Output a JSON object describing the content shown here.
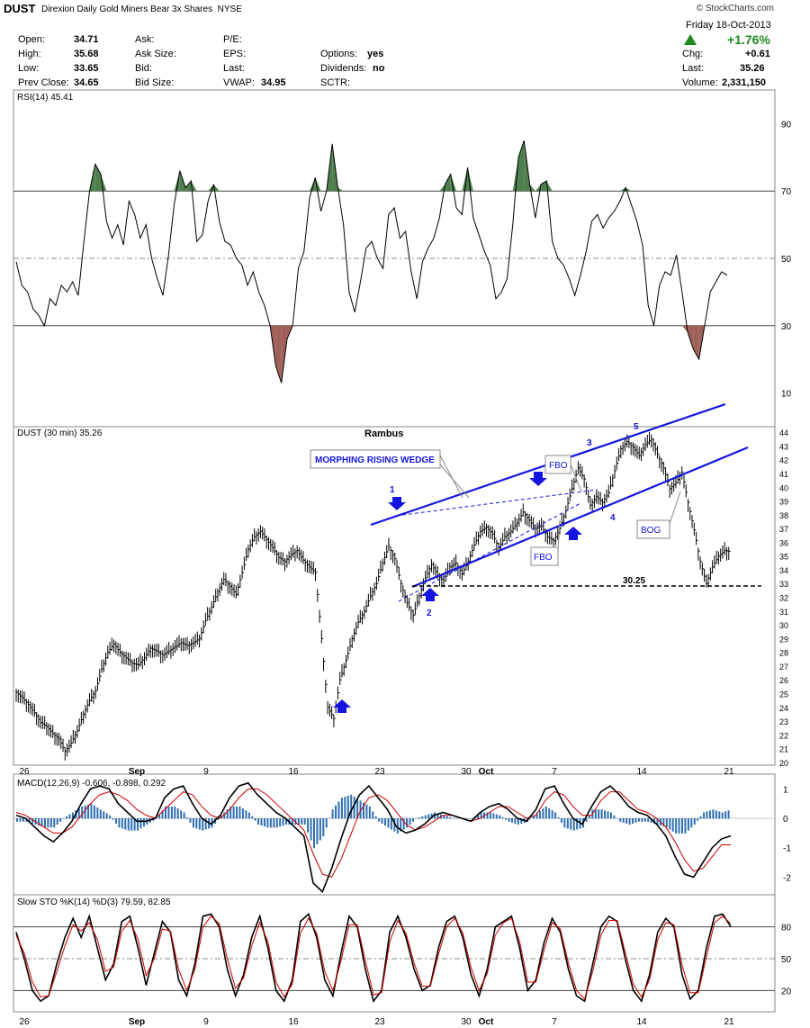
{
  "header": {
    "symbol": "DUST",
    "name": "Direxion Daily Gold Miners Bear 3x Shares",
    "exchange": "NYSE",
    "brand": "© StockCharts.com",
    "date": "Friday  18-Oct-2013",
    "change_pct": "+1.76%",
    "fields": [
      {
        "label": "Open:",
        "value": "34.71"
      },
      {
        "label": "High:",
        "value": "35.68"
      },
      {
        "label": "Low:",
        "value": "33.65"
      },
      {
        "label": "Prev Close:",
        "value": "34.65"
      },
      {
        "label": "Ask:",
        "value": ""
      },
      {
        "label": "Ask Size:",
        "value": ""
      },
      {
        "label": "Bid:",
        "value": ""
      },
      {
        "label": "Bid Size:",
        "value": ""
      },
      {
        "label": "P/E:",
        "value": ""
      },
      {
        "label": "EPS:",
        "value": ""
      },
      {
        "label": "Last:",
        "value": ""
      },
      {
        "label": "VWAP:",
        "value": "34.95"
      },
      {
        "label": "Options:",
        "value": "yes"
      },
      {
        "label": "Dividends:",
        "value": "no"
      },
      {
        "label": "SCTR:",
        "value": ""
      },
      {
        "label": "Chg:",
        "value": "+0.61"
      },
      {
        "label": "Last:",
        "value": "35.26"
      },
      {
        "label": "Volume:",
        "value": "2,331,150"
      }
    ]
  },
  "colors": {
    "price_bars": "#000000",
    "annotation": "#0000cc",
    "overbought_fill": "#4f7f4f",
    "oversold_fill": "#a0605a",
    "macd_hist": "#2f6fb0",
    "signal": "#cc0000",
    "grid": "#bbbbbb"
  },
  "chart_data": [
    {
      "type": "line",
      "title": "RSI(14) 45.41",
      "series": [
        {
          "name": "RSI(14)",
          "values": [
            49,
            42,
            40,
            35,
            33,
            30,
            38,
            36,
            42,
            40,
            43,
            39,
            55,
            70,
            78,
            75,
            61,
            56,
            60,
            54,
            67,
            63,
            56,
            60,
            50,
            44,
            39,
            51,
            66,
            76,
            71,
            73,
            55,
            57,
            67,
            72,
            61,
            55,
            54,
            50,
            48,
            42,
            46,
            40,
            36,
            30,
            18,
            13,
            26,
            30,
            47,
            52,
            68,
            74,
            64,
            70,
            84,
            71,
            60,
            40,
            34,
            43,
            53,
            55,
            50,
            47,
            63,
            65,
            56,
            58,
            46,
            38,
            49,
            53,
            56,
            62,
            72,
            75,
            65,
            63,
            77,
            62,
            57,
            52,
            48,
            38,
            40,
            44,
            60,
            80,
            85,
            72,
            62,
            72,
            73,
            55,
            50,
            48,
            44,
            39,
            45,
            52,
            61,
            63,
            59,
            62,
            64,
            67,
            71,
            66,
            61,
            54,
            36,
            30,
            42,
            46,
            45,
            51,
            40,
            28,
            23,
            20,
            30,
            40,
            43,
            46,
            45
          ]
        }
      ],
      "ylim": [
        0,
        100
      ],
      "ticks": [
        10,
        30,
        50,
        70,
        90
      ],
      "levels": [
        30,
        50,
        70
      ]
    },
    {
      "type": "bar",
      "title": "DUST (30 min) 35.26",
      "subtitle": "Rambus",
      "x_ticks": [
        "26",
        "Sep",
        "9",
        "16",
        "23",
        "30",
        "Oct",
        "7",
        "14",
        "21"
      ],
      "y_ticks": [
        20,
        21,
        22,
        23,
        24,
        25,
        26,
        27,
        28,
        29,
        30,
        31,
        32,
        33,
        34,
        35,
        36,
        37,
        38,
        39,
        40,
        41,
        42,
        43,
        44
      ],
      "ylim": [
        19.8,
        44.4
      ],
      "close": [
        25.1,
        24.7,
        24.2,
        23.6,
        22.9,
        22.6,
        22.1,
        21.7,
        20.8,
        21.4,
        22.3,
        23.5,
        24.5,
        25.2,
        26.8,
        28.0,
        28.6,
        28.0,
        27.6,
        27.2,
        27.1,
        27.6,
        28.3,
        28.1,
        27.8,
        28.1,
        28.4,
        28.7,
        28.5,
        28.7,
        29.0,
        30.3,
        31.3,
        32.4,
        33.3,
        32.8,
        32.2,
        33.8,
        35.5,
        36.4,
        36.8,
        36.2,
        35.6,
        34.9,
        34.6,
        35.1,
        35.4,
        34.7,
        34.2,
        33.8,
        29.0,
        24.0,
        23.2,
        26.0,
        27.4,
        29.0,
        30.2,
        31.0,
        32.1,
        33.0,
        34.5,
        35.7,
        34.8,
        33.0,
        31.6,
        30.7,
        32.1,
        33.4,
        34.4,
        33.6,
        33.2,
        34.2,
        34.5,
        33.7,
        34.6,
        35.8,
        36.8,
        37.1,
        36.6,
        35.6,
        36.4,
        36.8,
        37.4,
        38.2,
        37.6,
        37.0,
        37.2,
        36.4,
        36.1,
        37.0,
        38.3,
        39.9,
        41.4,
        40.6,
        38.7,
        39.3,
        38.9,
        39.6,
        41.2,
        42.8,
        43.3,
        42.9,
        42.3,
        43.1,
        43.5,
        42.4,
        41.4,
        39.9,
        40.3,
        41.1,
        38.9,
        36.9,
        34.6,
        33.0,
        34.2,
        35.0,
        35.4,
        35.3
      ]
    },
    {
      "type": "line",
      "title": "MACD(12,26,9) -0.606, -0.898, 0.292",
      "ticks": [
        -2,
        -1,
        0,
        1
      ],
      "ylim": [
        -2.6,
        1.5
      ],
      "series": [
        {
          "name": "MACD(12,26,9)",
          "values": [
            0.1,
            0.0,
            -0.3,
            -0.6,
            -0.8,
            -0.5,
            -0.1,
            0.5,
            1.0,
            1.1,
            1.0,
            0.5,
            0.2,
            -0.1,
            -0.1,
            0.0,
            0.7,
            1.0,
            1.1,
            0.5,
            0.0,
            -0.2,
            0.1,
            0.7,
            1.1,
            1.2,
            0.8,
            0.5,
            0.2,
            0.0,
            -0.3,
            -0.6,
            -2.2,
            -2.5,
            -1.7,
            -0.7,
            0.2,
            0.8,
            1.1,
            0.7,
            0.3,
            -0.3,
            -0.5,
            -0.4,
            -0.2,
            0.1,
            0.2,
            0.1,
            0.0,
            -0.1,
            0.2,
            0.4,
            0.5,
            0.3,
            0.0,
            -0.1,
            0.3,
            1.0,
            1.1,
            0.5,
            0.0,
            -0.2,
            0.4,
            0.9,
            1.1,
            0.8,
            0.4,
            0.2,
            0.1,
            -0.2,
            -0.6,
            -1.3,
            -1.9,
            -2.0,
            -1.5,
            -1.0,
            -0.7,
            -0.6
          ]
        },
        {
          "name": "Signal",
          "values": [
            0.2,
            0.1,
            -0.1,
            -0.3,
            -0.5,
            -0.5,
            -0.3,
            0.1,
            0.5,
            0.8,
            0.9,
            0.8,
            0.6,
            0.3,
            0.1,
            0.0,
            0.3,
            0.6,
            0.9,
            0.8,
            0.4,
            0.1,
            0.0,
            0.3,
            0.7,
            1.0,
            1.0,
            0.8,
            0.5,
            0.2,
            -0.1,
            -0.4,
            -1.2,
            -1.9,
            -2.0,
            -1.4,
            -0.6,
            0.2,
            0.7,
            0.8,
            0.6,
            0.2,
            -0.2,
            -0.4,
            -0.3,
            -0.1,
            0.1,
            0.1,
            0.0,
            -0.1,
            0.0,
            0.2,
            0.4,
            0.4,
            0.2,
            0.0,
            0.1,
            0.6,
            0.9,
            0.8,
            0.4,
            0.1,
            0.1,
            0.6,
            0.9,
            0.9,
            0.6,
            0.3,
            0.2,
            0.0,
            -0.3,
            -0.8,
            -1.4,
            -1.8,
            -1.7,
            -1.3,
            -0.9,
            -0.9
          ]
        }
      ]
    },
    {
      "type": "line",
      "title": "Slow STO %K(14) %D(3) 79.59, 82.85",
      "ticks": [
        20,
        50,
        80
      ],
      "levels": [
        20,
        50,
        80
      ],
      "ylim": [
        0,
        100
      ],
      "series": [
        {
          "name": "%K(14)",
          "values": [
            75,
            50,
            20,
            10,
            15,
            45,
            70,
            88,
            70,
            90,
            60,
            30,
            45,
            85,
            90,
            60,
            25,
            55,
            85,
            75,
            30,
            15,
            45,
            90,
            92,
            80,
            40,
            15,
            35,
            70,
            90,
            60,
            20,
            10,
            30,
            85,
            92,
            70,
            30,
            15,
            55,
            90,
            80,
            40,
            10,
            20,
            75,
            90,
            70,
            40,
            20,
            25,
            60,
            85,
            90,
            70,
            35,
            15,
            40,
            80,
            85,
            90,
            60,
            20,
            30,
            65,
            88,
            75,
            40,
            15,
            10,
            45,
            80,
            90,
            85,
            50,
            20,
            10,
            35,
            75,
            88,
            80,
            35,
            12,
            20,
            60,
            90,
            92,
            80
          ]
        },
        {
          "name": "%D(3)",
          "values": [
            72,
            55,
            28,
            14,
            15,
            38,
            62,
            82,
            76,
            84,
            68,
            38,
            42,
            76,
            86,
            68,
            34,
            50,
            78,
            76,
            40,
            20,
            40,
            80,
            90,
            83,
            50,
            22,
            32,
            62,
            84,
            66,
            28,
            14,
            26,
            74,
            88,
            74,
            38,
            20,
            48,
            82,
            82,
            48,
            16,
            18,
            66,
            86,
            74,
            46,
            24,
            24,
            54,
            80,
            88,
            74,
            42,
            20,
            36,
            72,
            84,
            88,
            66,
            28,
            28,
            58,
            84,
            78,
            46,
            20,
            12,
            38,
            72,
            86,
            86,
            56,
            26,
            14,
            30,
            68,
            84,
            82,
            44,
            18,
            18,
            52,
            84,
            90,
            83
          ]
        }
      ]
    }
  ],
  "annotations": {
    "wedge_label": "MORPHING RISING WEDGE",
    "fbo_top": "FBO",
    "fbo_bottom": "FBO",
    "bog": "BOG",
    "level": "30.25",
    "n1": "1",
    "n2": "2",
    "n3": "3",
    "n4": "4",
    "n5": "5"
  }
}
